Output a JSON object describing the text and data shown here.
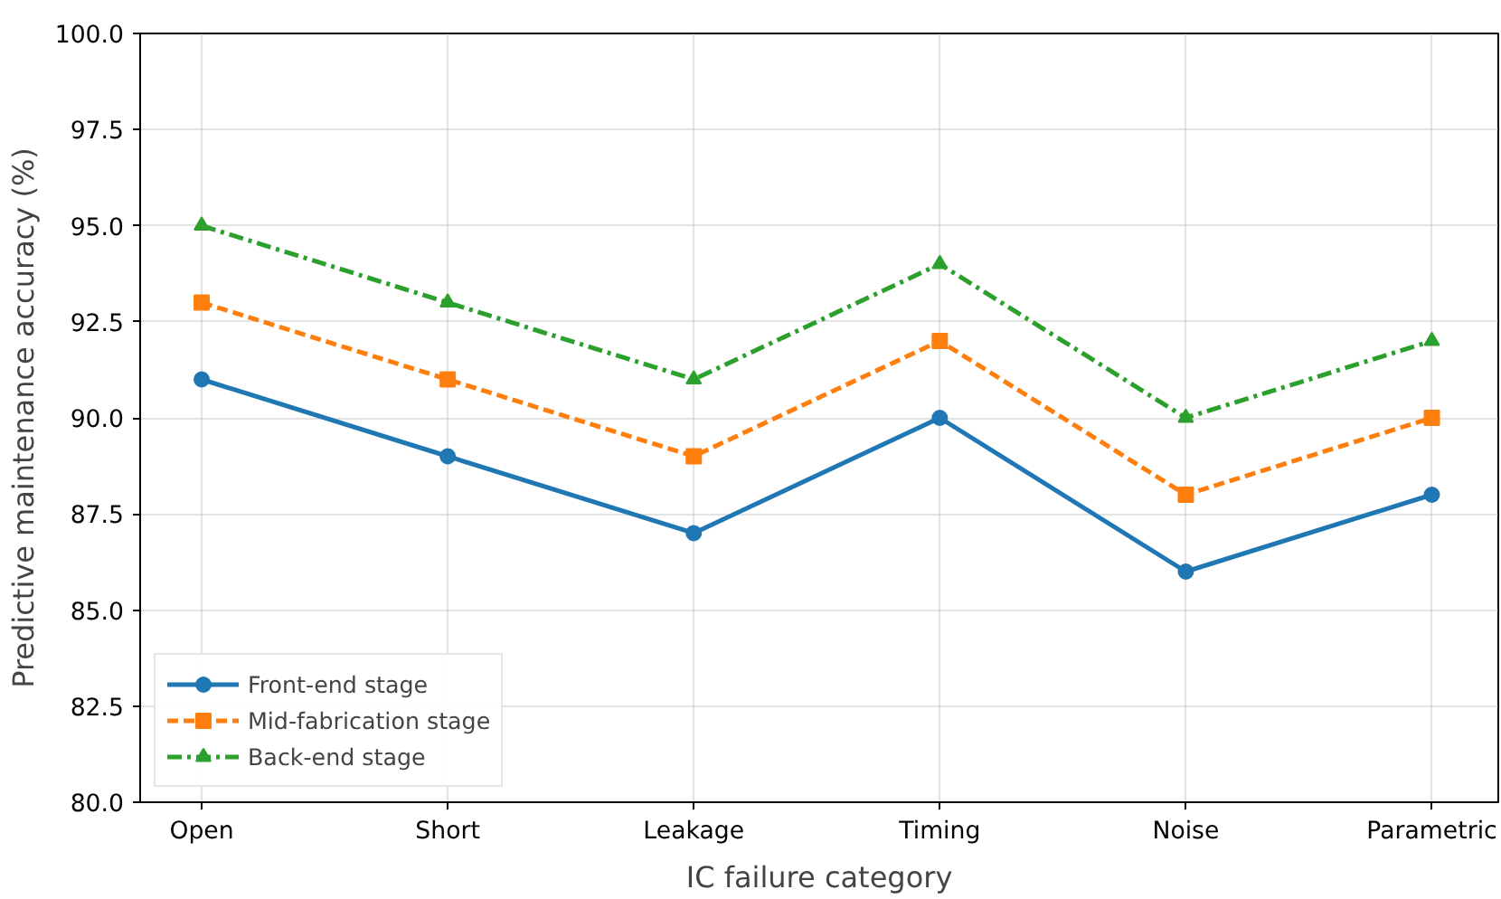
{
  "chart_data": {
    "type": "line",
    "xlabel": "IC failure category",
    "ylabel": "Predictive maintenance accuracy (%)",
    "categories": [
      "Open",
      "Short",
      "Leakage",
      "Timing",
      "Noise",
      "Parametric"
    ],
    "series": [
      {
        "name": "Front-end stage",
        "color": "#1f77b4",
        "marker": "circle",
        "line_style": "solid",
        "values": [
          91,
          89,
          87,
          90,
          86,
          88
        ]
      },
      {
        "name": "Mid-fabrication stage",
        "color": "#ff7f0e",
        "marker": "square",
        "line_style": "dashed",
        "values": [
          93,
          91,
          89,
          92,
          88,
          90
        ]
      },
      {
        "name": "Back-end stage",
        "color": "#2ca02c",
        "marker": "triangle",
        "line_style": "dashdot",
        "values": [
          95,
          93,
          91,
          94,
          90,
          92
        ]
      }
    ],
    "ylim": [
      80,
      100
    ],
    "yticks": [
      {
        "value": 80,
        "label": "80.0"
      },
      {
        "value": 82.5,
        "label": "82.5"
      },
      {
        "value": 85,
        "label": "85.0"
      },
      {
        "value": 87.5,
        "label": "87.5"
      },
      {
        "value": 90,
        "label": "90.0"
      },
      {
        "value": 92.5,
        "label": "92.5"
      },
      {
        "value": 95,
        "label": "95.0"
      },
      {
        "value": 97.5,
        "label": "97.5"
      },
      {
        "value": 100,
        "label": "100.0"
      }
    ],
    "grid": true,
    "legend": "bottom left"
  }
}
